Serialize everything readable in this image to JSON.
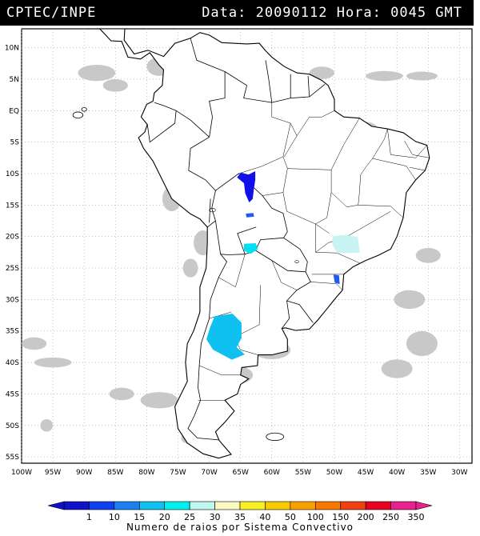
{
  "header": {
    "source": "CPTEC/INPE",
    "datetime": "Data: 20090112 Hora: 0045 GMT"
  },
  "map": {
    "lon_range": [
      -100,
      -28
    ],
    "lat_range": [
      -56,
      13
    ],
    "lon_labels": [
      {
        "lon": -100,
        "label": "100W"
      },
      {
        "lon": -95,
        "label": "95W"
      },
      {
        "lon": -90,
        "label": "90W"
      },
      {
        "lon": -85,
        "label": "85W"
      },
      {
        "lon": -80,
        "label": "80W"
      },
      {
        "lon": -75,
        "label": "75W"
      },
      {
        "lon": -70,
        "label": "70W"
      },
      {
        "lon": -65,
        "label": "65W"
      },
      {
        "lon": -60,
        "label": "60W"
      },
      {
        "lon": -55,
        "label": "55W"
      },
      {
        "lon": -50,
        "label": "50W"
      },
      {
        "lon": -45,
        "label": "45W"
      },
      {
        "lon": -40,
        "label": "40W"
      },
      {
        "lon": -35,
        "label": "35W"
      },
      {
        "lon": -30,
        "label": "30W"
      }
    ],
    "lat_labels": [
      {
        "lat": 10,
        "label": "10N"
      },
      {
        "lat": 5,
        "label": "5N"
      },
      {
        "lat": 0,
        "label": "EQ"
      },
      {
        "lat": -5,
        "label": "5S"
      },
      {
        "lat": -10,
        "label": "10S"
      },
      {
        "lat": -15,
        "label": "15S"
      },
      {
        "lat": -20,
        "label": "20S"
      },
      {
        "lat": -25,
        "label": "25S"
      },
      {
        "lat": -30,
        "label": "30S"
      },
      {
        "lat": -35,
        "label": "35S"
      },
      {
        "lat": -40,
        "label": "40S"
      },
      {
        "lat": -45,
        "label": "45S"
      },
      {
        "lat": -50,
        "label": "50S"
      },
      {
        "lat": -55,
        "label": "55S"
      }
    ],
    "cloud_color": "#c8c8c8",
    "coast_color": "#000000",
    "convective_systems": [
      {
        "name": "rondonia-system",
        "lon": -63.7,
        "lat": -11.5,
        "class": "1-10",
        "color": "#1010e8"
      },
      {
        "name": "bolivia-small",
        "lon": -63.5,
        "lat": -16.6,
        "class": "10-15",
        "color": "#1e5bf0"
      },
      {
        "name": "paraguay-chaco",
        "lon": -63.4,
        "lat": -21.8,
        "class": "25-30",
        "color": "#00e0f0"
      },
      {
        "name": "sao-paulo",
        "lon": -48.0,
        "lat": -21.2,
        "class": "30-35",
        "color": "#c8f4f4"
      },
      {
        "name": "santa-catarina",
        "lon": -49.6,
        "lat": -26.7,
        "class": "10-15",
        "color": "#1e5bf0"
      },
      {
        "name": "la-pampa",
        "lon": -67.2,
        "lat": -35.5,
        "class": "20-25",
        "color": "#10c0f0"
      }
    ]
  },
  "colorbar": {
    "title": "Numero de raios por Sistema Convectivo",
    "labels": [
      "1",
      "10",
      "15",
      "20",
      "25",
      "30",
      "35",
      "40",
      "50",
      "100",
      "150",
      "200",
      "250",
      "350"
    ],
    "colors": [
      "#1010c8",
      "#1040f0",
      "#1e80f0",
      "#10c0f0",
      "#00f0f0",
      "#c0f8f0",
      "#f8f8c0",
      "#f8f020",
      "#f8c800",
      "#f8a000",
      "#f87800",
      "#f04010",
      "#e80020",
      "#e82090"
    ]
  }
}
